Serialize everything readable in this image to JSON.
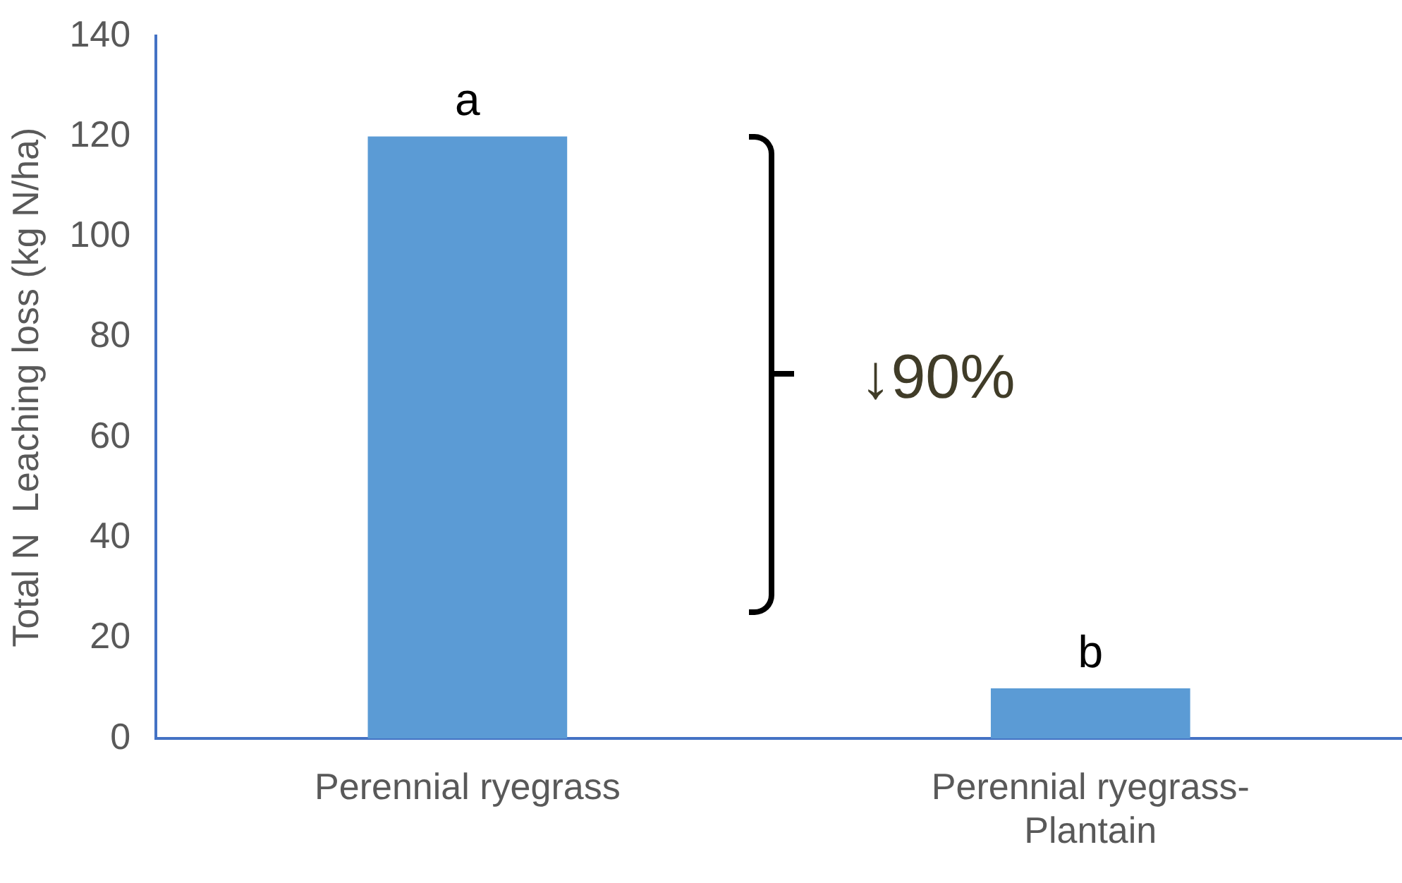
{
  "chart_data": {
    "type": "bar",
    "ylabel": "Total N  Leaching loss (kg N/ha)",
    "categories": [
      "Perennial ryegrass",
      "Perennial ryegrass-Plantain"
    ],
    "values": [
      120,
      10
    ],
    "color": "#5b9bd5",
    "ylim": [
      0,
      140
    ],
    "yticks": [
      0,
      20,
      40,
      60,
      80,
      100,
      120,
      140
    ],
    "grid": false,
    "legend": false,
    "annotations": [
      {
        "text": "a",
        "x": "Perennial ryegrass",
        "y": 120
      },
      {
        "text": "b",
        "x": "Perennial ryegrass-Plantain",
        "y": 10
      },
      "↓90%"
    ]
  }
}
